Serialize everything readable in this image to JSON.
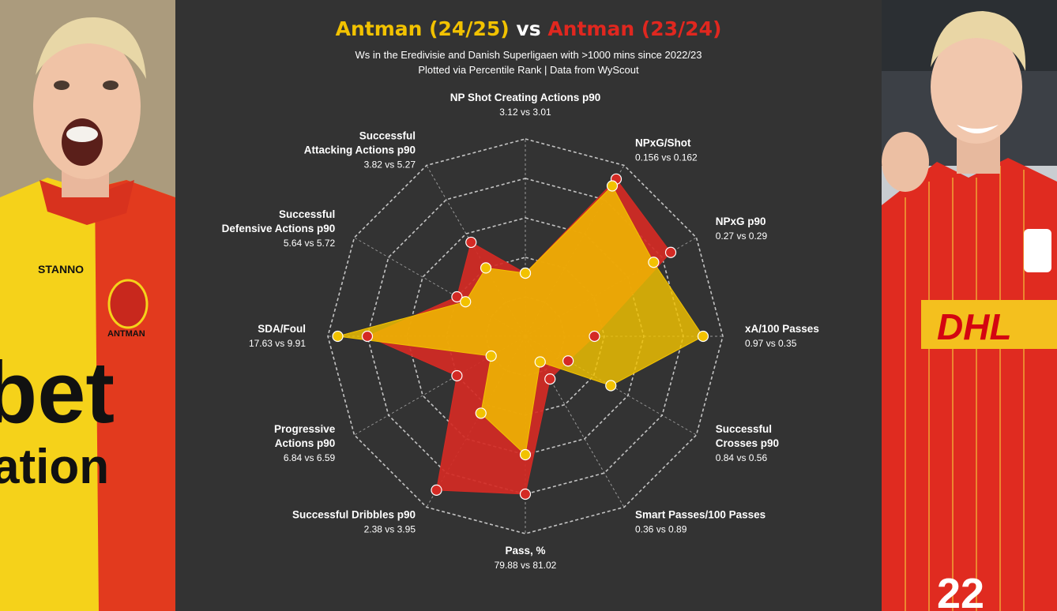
{
  "title": {
    "player_a": "Antman (24/25)",
    "vs": "vs",
    "player_b": "Antman (23/24)"
  },
  "subtitle": {
    "line1": "Ws in the Eredivisie and Danish Superligaen with >1000 mins since 2022/23",
    "line2": "Plotted via Percentile Rank | Data from WyScout"
  },
  "colors": {
    "player_a": "#f2c200",
    "player_b": "#d42a24",
    "background": "#333333",
    "grid": "#dddddd"
  },
  "photos": {
    "left": {
      "jersey_text_1": "bet",
      "jersey_text_2": "ation",
      "sponsor": "STANNO",
      "name": "ANTMAN",
      "club_badge": "go-ahead-eagles-badge"
    },
    "right": {
      "jersey_sponsor": "DHL",
      "club_badge": "fcn-badge",
      "number": "22"
    }
  },
  "chart_data": {
    "type": "radar",
    "scale": "percentile rank",
    "range": [
      0,
      100
    ],
    "rings": 5,
    "series": [
      {
        "name": "Antman (24/25)",
        "color": "#f2c200",
        "values": [
          32,
          88,
          75,
          90,
          50,
          15,
          60,
          45,
          20,
          95,
          35,
          40
        ]
      },
      {
        "name": "Antman (23/24)",
        "color": "#d42a24",
        "values": [
          32,
          92,
          85,
          35,
          25,
          25,
          80,
          90,
          40,
          80,
          40,
          55
        ]
      }
    ],
    "metrics": [
      {
        "name": [
          "NP Shot Creating Actions p90"
        ],
        "values": "3.12 vs 3.01"
      },
      {
        "name": [
          "NPxG/Shot"
        ],
        "values": "0.156 vs 0.162"
      },
      {
        "name": [
          "NPxG p90"
        ],
        "values": "0.27 vs 0.29"
      },
      {
        "name": [
          "xA/100 Passes"
        ],
        "values": "0.97 vs 0.35"
      },
      {
        "name": [
          "Successful",
          "Crosses p90"
        ],
        "values": "0.84 vs 0.56"
      },
      {
        "name": [
          "Smart Passes/100 Passes"
        ],
        "values": "0.36 vs 0.89"
      },
      {
        "name": [
          "Pass, %"
        ],
        "values": "79.88 vs 81.02"
      },
      {
        "name": [
          "Successful Dribbles p90"
        ],
        "values": "2.38 vs 3.95"
      },
      {
        "name": [
          "Progressive",
          "Actions p90"
        ],
        "values": "6.84 vs 6.59"
      },
      {
        "name": [
          "SDA/Foul"
        ],
        "values": "17.63 vs 9.91"
      },
      {
        "name": [
          "Successful",
          "Defensive Actions p90"
        ],
        "values": "5.64 vs 5.72"
      },
      {
        "name": [
          "Successful",
          "Attacking Actions p90"
        ],
        "values": "3.82 vs 5.27"
      }
    ]
  }
}
